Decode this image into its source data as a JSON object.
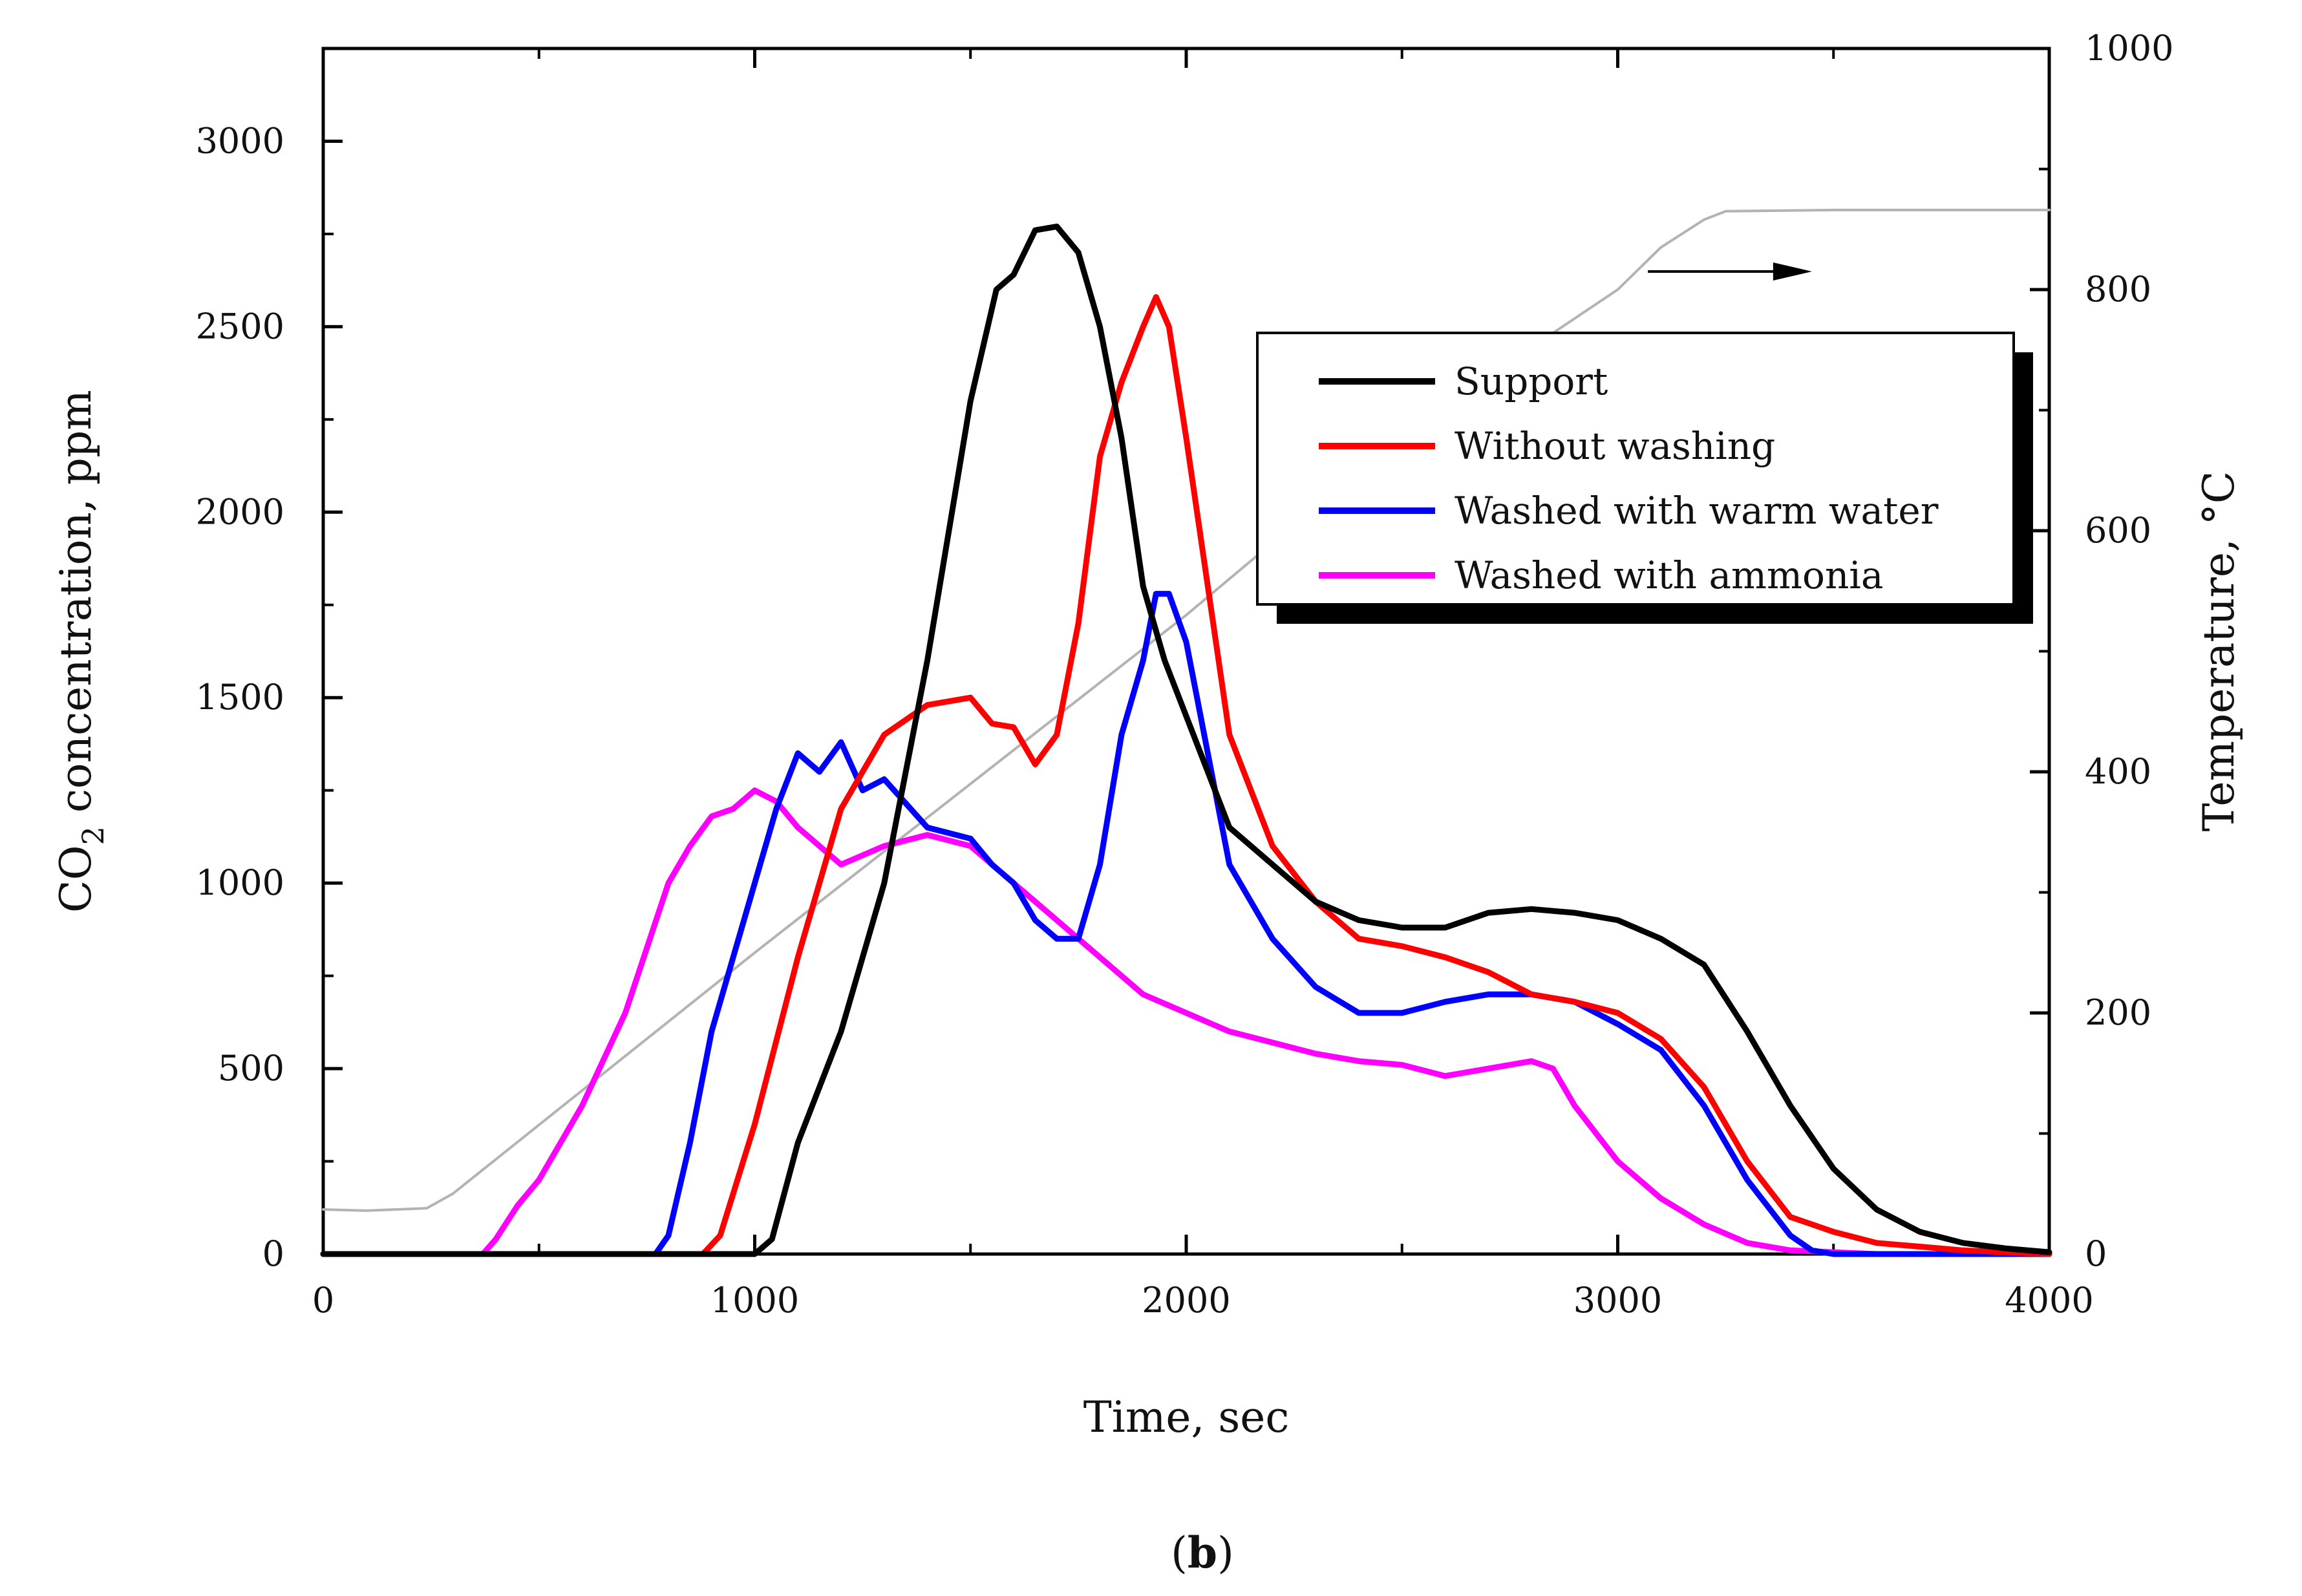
{
  "chart_data": {
    "type": "line",
    "panel_label_open": "(",
    "panel_label_letter": "b",
    "panel_label_close": ")",
    "xlabel": "Time, sec",
    "ylabel_prefix": "CO",
    "ylabel_subscript": "2",
    "ylabel_suffix": " concentration, ppm",
    "y2label": "Temperature, °C",
    "xlim": [
      0,
      4000
    ],
    "ylim": [
      0,
      3250
    ],
    "y2lim": [
      0,
      1000
    ],
    "xticks": [
      0,
      1000,
      2000,
      3000,
      4000
    ],
    "yticks": [
      0,
      500,
      1000,
      1500,
      2000,
      2500,
      3000
    ],
    "y2ticks": [
      0,
      200,
      400,
      600,
      800,
      1000
    ],
    "legend_position": "upper-right",
    "colors": {
      "support": "#000000",
      "without": "#ff0000",
      "warm": "#0000ff",
      "ammonia": "#ff00ff",
      "temperature": "#b3b3b3"
    },
    "series": [
      {
        "name": "Support",
        "key": "support",
        "x": [
          0,
          950,
          1000,
          1040,
          1100,
          1200,
          1300,
          1400,
          1500,
          1560,
          1600,
          1650,
          1700,
          1750,
          1800,
          1850,
          1900,
          1950,
          2000,
          2050,
          2100,
          2200,
          2300,
          2400,
          2500,
          2600,
          2700,
          2800,
          2900,
          3000,
          3100,
          3200,
          3300,
          3400,
          3500,
          3600,
          3700,
          3800,
          3900,
          4000
        ],
        "values": [
          0,
          0,
          0,
          40,
          300,
          600,
          1000,
          1600,
          2300,
          2600,
          2640,
          2760,
          2770,
          2700,
          2500,
          2200,
          1800,
          1600,
          1450,
          1300,
          1150,
          1050,
          950,
          900,
          880,
          880,
          920,
          930,
          920,
          900,
          850,
          780,
          600,
          400,
          230,
          120,
          60,
          30,
          15,
          5
        ]
      },
      {
        "name": "Without washing",
        "key": "without",
        "x": [
          0,
          880,
          920,
          1000,
          1100,
          1200,
          1300,
          1400,
          1500,
          1550,
          1600,
          1650,
          1700,
          1750,
          1800,
          1850,
          1900,
          1930,
          1960,
          2000,
          2050,
          2100,
          2200,
          2300,
          2400,
          2500,
          2600,
          2700,
          2800,
          2900,
          3000,
          3100,
          3200,
          3300,
          3400,
          3500,
          3600,
          3700,
          3800,
          3900,
          4000
        ],
        "values": [
          0,
          0,
          50,
          350,
          800,
          1200,
          1400,
          1480,
          1500,
          1430,
          1420,
          1320,
          1400,
          1700,
          2150,
          2350,
          2500,
          2580,
          2500,
          2200,
          1800,
          1400,
          1100,
          950,
          850,
          830,
          800,
          760,
          700,
          680,
          650,
          580,
          450,
          250,
          100,
          60,
          30,
          20,
          10,
          5,
          0
        ]
      },
      {
        "name": "Washed with warm water",
        "key": "warm",
        "x": [
          0,
          770,
          800,
          850,
          900,
          1000,
          1050,
          1100,
          1150,
          1200,
          1250,
          1300,
          1400,
          1500,
          1550,
          1600,
          1650,
          1700,
          1750,
          1800,
          1850,
          1900,
          1930,
          1960,
          2000,
          2050,
          2100,
          2200,
          2300,
          2400,
          2500,
          2600,
          2700,
          2800,
          2900,
          3000,
          3100,
          3200,
          3300,
          3400,
          3450,
          3500,
          3600,
          4000
        ],
        "values": [
          0,
          0,
          50,
          300,
          600,
          1000,
          1200,
          1350,
          1300,
          1380,
          1250,
          1280,
          1150,
          1120,
          1050,
          1000,
          900,
          850,
          850,
          1050,
          1400,
          1600,
          1780,
          1780,
          1650,
          1350,
          1050,
          850,
          720,
          650,
          650,
          680,
          700,
          700,
          680,
          620,
          550,
          400,
          200,
          50,
          10,
          0,
          0,
          0
        ]
      },
      {
        "name": "Washed with ammonia",
        "key": "ammonia",
        "x": [
          0,
          370,
          400,
          450,
          500,
          600,
          700,
          800,
          850,
          900,
          950,
          1000,
          1050,
          1100,
          1200,
          1300,
          1400,
          1500,
          1600,
          1700,
          1800,
          1900,
          2000,
          2100,
          2200,
          2300,
          2400,
          2500,
          2600,
          2700,
          2800,
          2850,
          2900,
          3000,
          3100,
          3200,
          3300,
          3400,
          3500,
          3600,
          4000
        ],
        "values": [
          0,
          0,
          40,
          130,
          200,
          400,
          650,
          1000,
          1100,
          1180,
          1200,
          1250,
          1220,
          1150,
          1050,
          1100,
          1130,
          1100,
          1000,
          900,
          800,
          700,
          650,
          600,
          570,
          540,
          520,
          510,
          480,
          500,
          520,
          500,
          400,
          250,
          150,
          80,
          30,
          10,
          5,
          0,
          0
        ]
      },
      {
        "name": "Temperature",
        "key": "temperature",
        "axis": "right",
        "x": [
          0,
          100,
          240,
          300,
          1000,
          2000,
          2500,
          3000,
          3100,
          3200,
          3250,
          3500,
          4000
        ],
        "values": [
          37,
          36,
          38,
          50,
          250,
          530,
          680,
          800,
          835,
          858,
          865,
          866,
          866
        ]
      }
    ],
    "arrow_annotation": {
      "x1": 3070,
      "x2": 3450,
      "y2": 815,
      "direction": "right",
      "points_to": "right-axis"
    }
  }
}
